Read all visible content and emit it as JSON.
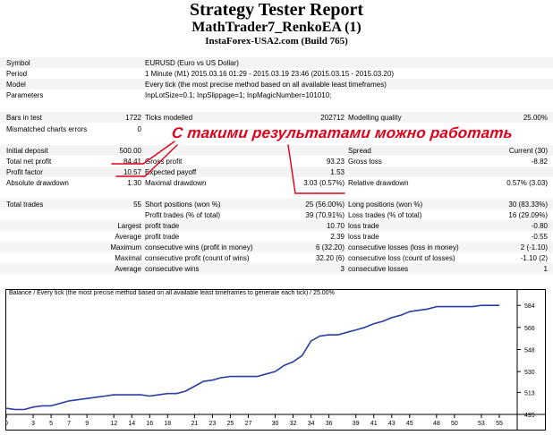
{
  "header": {
    "title": "Strategy Tester Report",
    "subtitle": "MathTrader7_RenkoEA (1)",
    "build": "InstaForex-USA2.com (Build 765)"
  },
  "summary": {
    "symbol_label": "Symbol",
    "symbol_value": "EURUSD (Euro vs US Dollar)",
    "period_label": "Period",
    "period_value": "1 Minute (M1) 2015.03.16 01:29 - 2015.03.19 23:46 (2015.03.15 - 2015.03.20)",
    "model_label": "Model",
    "model_value": "Every tick (the most precise method based on all available least timeframes)",
    "params_label": "Parameters",
    "params_value": "InpLotSize=0.1; InpSlippage=1; InpMagicNumber=101010;",
    "bars_label": "Bars in test",
    "bars_value": "1722",
    "ticks_label": "Ticks modelled",
    "ticks_value": "202712",
    "quality_label": "Modelling quality",
    "quality_value": "25.00%",
    "mismatch_label": "Mismatched charts errors",
    "mismatch_value": "0",
    "deposit_label": "Initial deposit",
    "deposit_value": "500.00",
    "spread_label": "Spread",
    "spread_value": "Current (30)",
    "net_label": "Total net profit",
    "net_value": "84.41",
    "gross_profit_label": "Gross profit",
    "gross_profit_value": "93.23",
    "gross_loss_label": "Gross loss",
    "gross_loss_value": "-8.82",
    "pf_label": "Profit factor",
    "pf_value": "10.57",
    "ep_label": "Expected payoff",
    "ep_value": "1.53",
    "abs_dd_label": "Absolute drawdown",
    "abs_dd_value": "1.30",
    "max_dd_label": "Maximal drawdown",
    "max_dd_value": "3.03 (0.57%)",
    "rel_dd_label": "Relative drawdown",
    "rel_dd_value": "0.57% (3.03)",
    "trades_label": "Total trades",
    "trades_value": "55",
    "short_label": "Short positions (won %)",
    "short_value": "25 (56.00%)",
    "long_label": "Long positions (won %)",
    "long_value": "30 (83.33%)",
    "ptrades_label": "Profit trades (% of total)",
    "ptrades_value": "39 (70.91%)",
    "ltrades_label": "Loss trades (% of total)",
    "ltrades_value": "16 (29.09%)",
    "largest_label": "Largest",
    "largest_profit_label": "profit trade",
    "largest_profit_value": "10.70",
    "largest_loss_label": "loss trade",
    "largest_loss_value": "-0.80",
    "average_label": "Average",
    "average_profit_label": "profit trade",
    "average_profit_value": "2.39",
    "average_loss_label": "loss trade",
    "average_loss_value": "-0.55",
    "maximum_label": "Maximum",
    "max_cw_label": "consecutive wins (profit in money)",
    "max_cw_value": "6 (32.20)",
    "max_cl_label": "consecutive losses (loss in money)",
    "max_cl_value": "2 (-1.10)",
    "maximal_label": "Maximal",
    "maximal_cw_label": "consecutive profit (count of wins)",
    "maximal_cw_value": "32.20 (6)",
    "maximal_cl_label": "consecutive loss (count of losses)",
    "maximal_cl_value": "-1.10 (2)",
    "avg2_label": "Average",
    "avg_cw_label": "consecutive wins",
    "avg_cw_value": "3",
    "avg_cl_label": "consecutive losses",
    "avg_cl_value": "1"
  },
  "annotation": {
    "text": "С такими результатами можно работать",
    "color": "#e0001a"
  },
  "chart": {
    "title": "Balance / Every tick (the most precise method based on all available least timeframes to generate each tick) / 25.00%"
  },
  "chart_data": {
    "type": "line",
    "title": "Balance / Every tick (the most precise method based on all available least timeframes to generate each tick) / 25.00%",
    "xlabel": "",
    "ylabel": "",
    "xlim": [
      0,
      57
    ],
    "ylim": [
      495,
      590
    ],
    "x_ticks": [
      0,
      3,
      5,
      7,
      9,
      12,
      14,
      16,
      18,
      21,
      23,
      25,
      27,
      30,
      32,
      34,
      36,
      39,
      41,
      43,
      45,
      48,
      50,
      53,
      55
    ],
    "y_ticks": [
      495,
      513,
      530,
      548,
      566,
      584
    ],
    "grid": false,
    "color": "#2b3fa0",
    "series": [
      {
        "x": [
          0,
          1,
          2,
          3,
          4,
          5,
          6,
          7,
          8,
          9,
          10,
          11,
          12,
          13,
          14,
          15,
          16,
          17,
          18,
          19,
          20,
          21,
          22,
          23,
          24,
          25,
          26,
          27,
          28,
          29,
          30,
          31,
          32,
          33,
          34,
          35,
          36,
          37,
          38,
          39,
          40,
          41,
          42,
          43,
          44,
          45,
          46,
          47,
          48,
          49,
          50,
          51,
          52,
          53,
          54,
          55
        ],
        "y": [
          500,
          499,
          499,
          501,
          502,
          502,
          504,
          506,
          507,
          508,
          509,
          510,
          511,
          511,
          511,
          511,
          510,
          511,
          512,
          512,
          514,
          518,
          522,
          523,
          525,
          526,
          526,
          526,
          526,
          528,
          530,
          535,
          538,
          543,
          555,
          559,
          560,
          560,
          562,
          564,
          566,
          569,
          571,
          574,
          576,
          579,
          580,
          581,
          583,
          583,
          583,
          583,
          583,
          584,
          584,
          584
        ]
      }
    ]
  }
}
